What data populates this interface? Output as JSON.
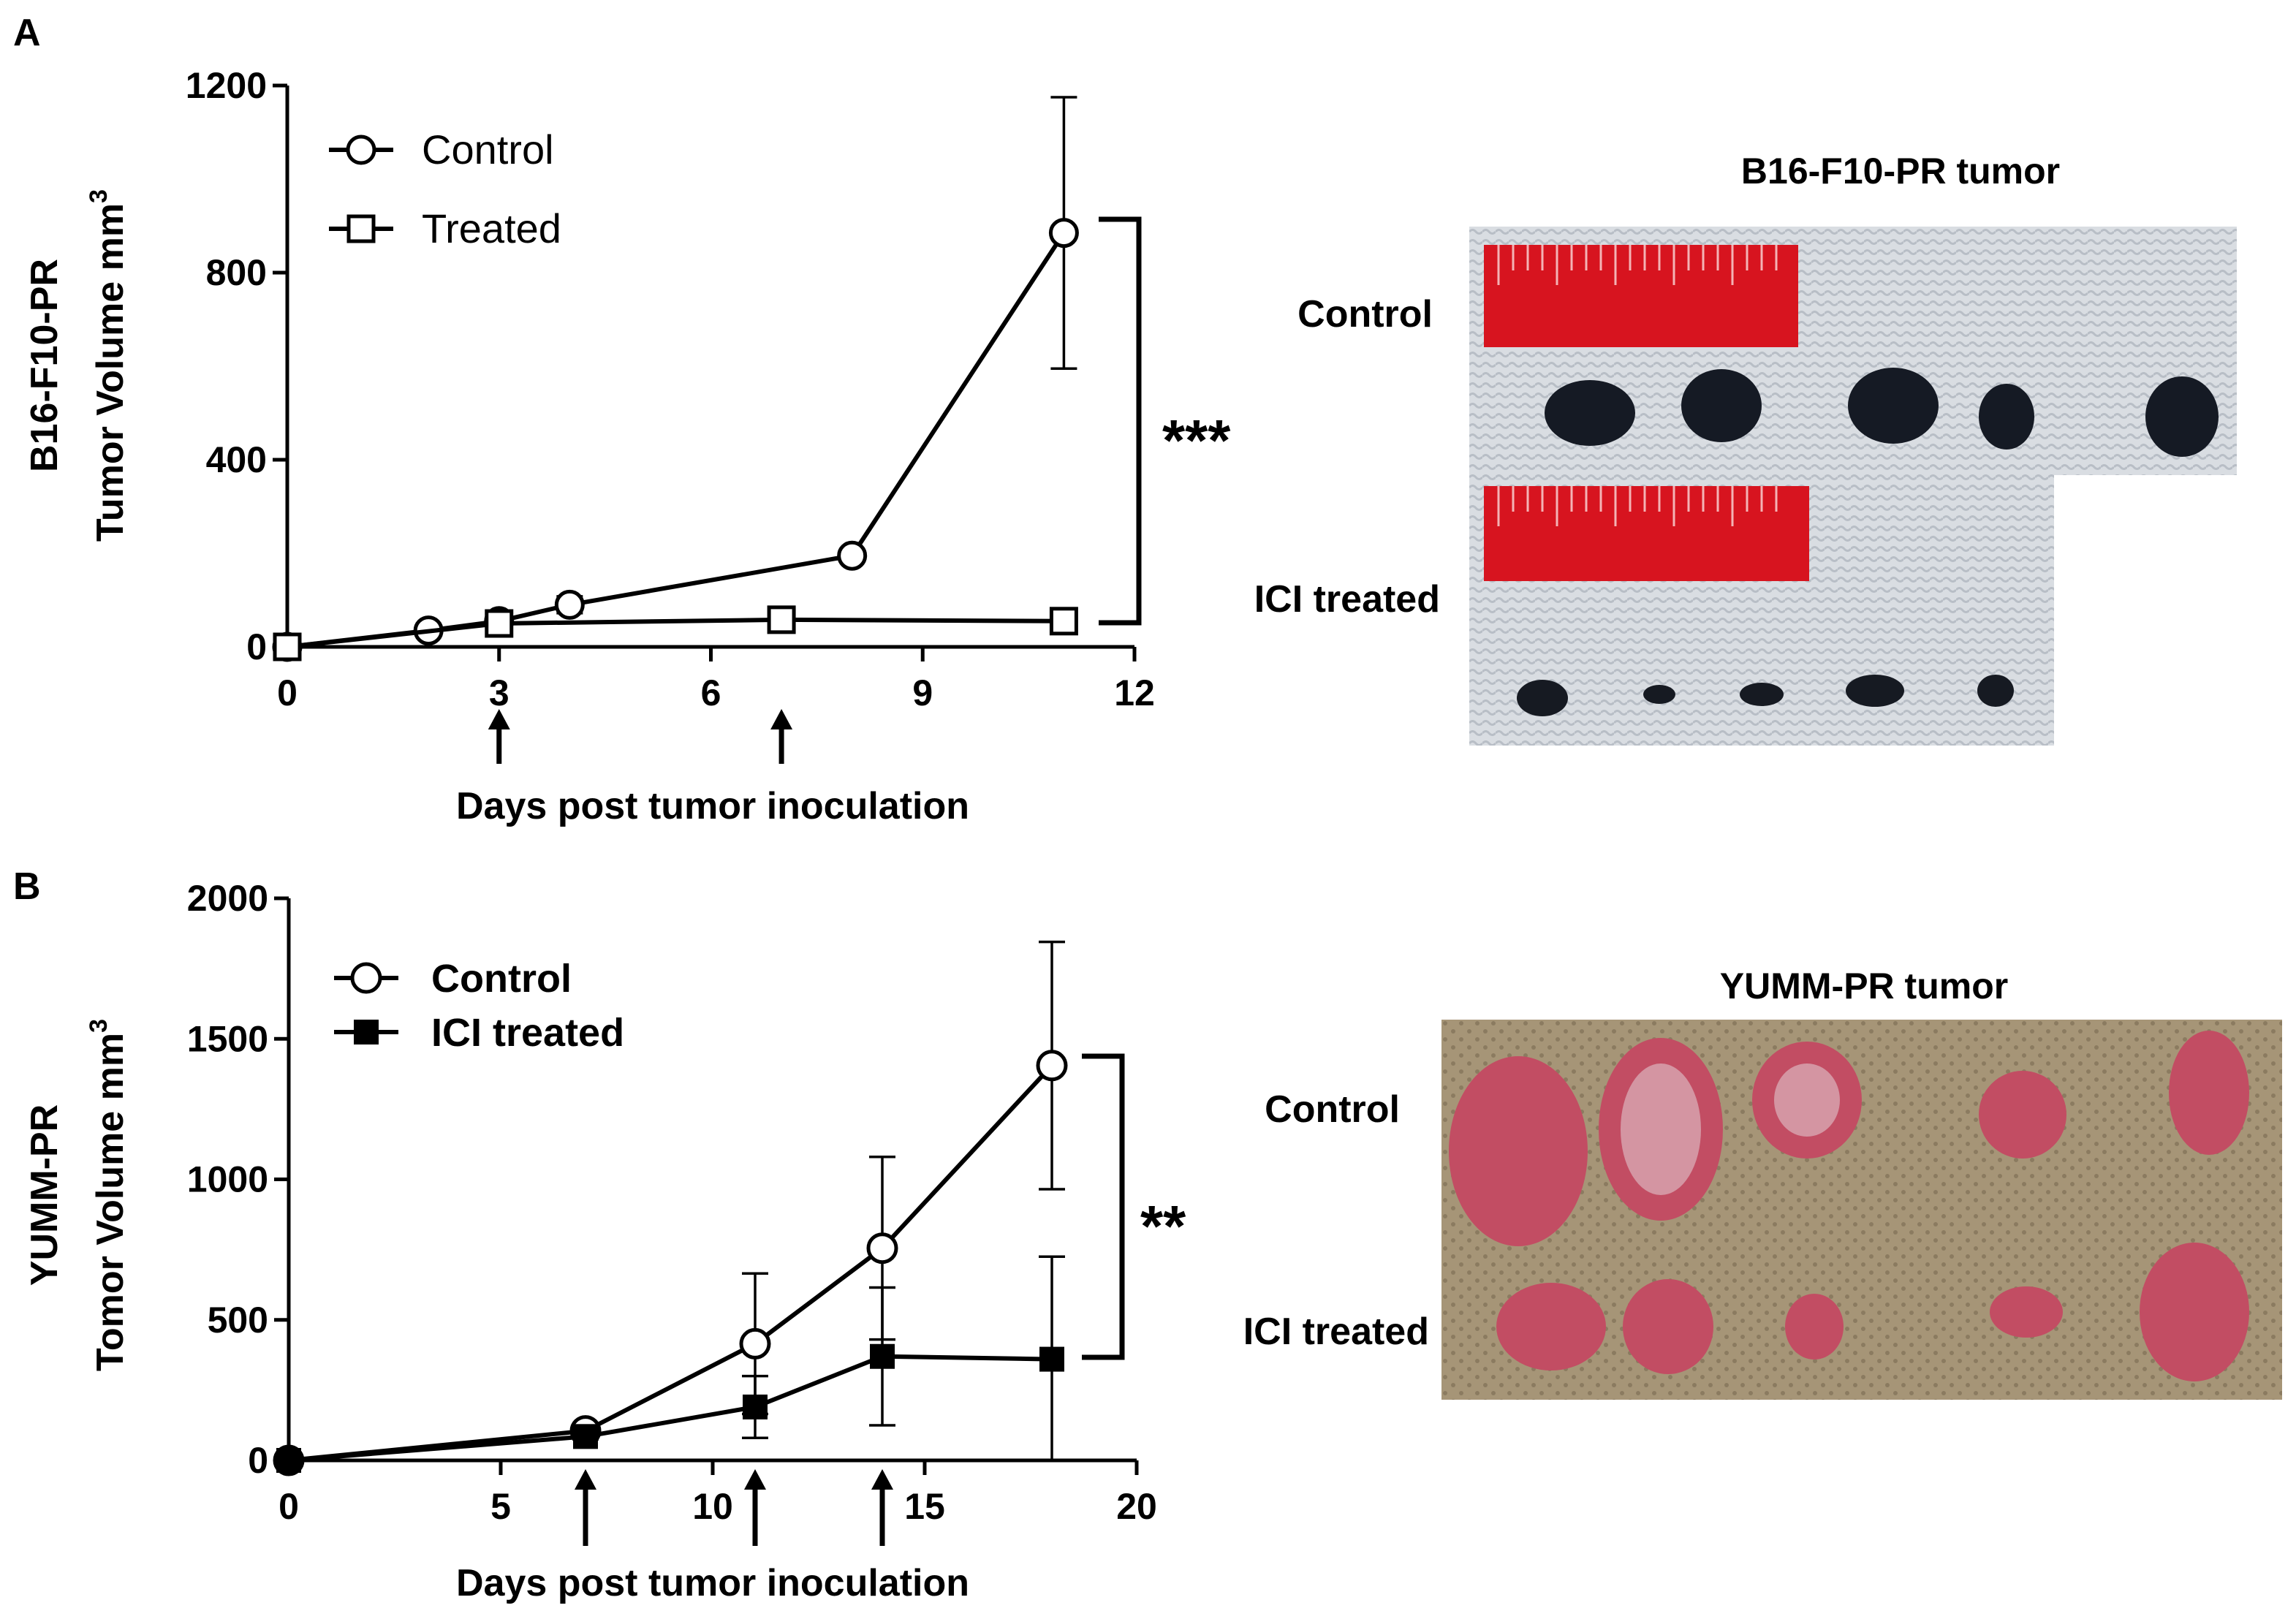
{
  "panels": [
    {
      "letter": "A",
      "ylabel_line1": "B16-F10-PR",
      "ylabel_line2": "Tumor Volume mm",
      "ylabel_sup": "3",
      "xlabel": "Days post tumor inoculation",
      "significance": "***",
      "photo_title": "B16-F10-PR tumor",
      "photo_labels": [
        "Control",
        "ICI treated"
      ],
      "dosing_days": [
        3,
        7
      ]
    },
    {
      "letter": "B",
      "ylabel_line1": "YUMM-PR",
      "ylabel_line2": "Tomor Volume mm",
      "ylabel_sup": "3",
      "xlabel": "Days post tumor inoculation",
      "significance": "**",
      "photo_title": "YUMM-PR tumor",
      "photo_labels": [
        "Control",
        "ICI treated"
      ],
      "dosing_days": [
        7,
        11,
        14
      ]
    }
  ],
  "chart_data": [
    {
      "type": "line",
      "xlim": [
        0,
        12
      ],
      "ylim": [
        0,
        1200
      ],
      "xticks": [
        0,
        3,
        6,
        9,
        12
      ],
      "yticks": [
        0,
        400,
        800,
        1200
      ],
      "legend_position": "top-left",
      "series": [
        {
          "name": "Control",
          "marker": "open-circle",
          "x": [
            0,
            2,
            3,
            4,
            8,
            11
          ],
          "y": [
            0,
            35,
            55,
            90,
            195,
            885
          ],
          "err": [
            0,
            5,
            8,
            18,
            12,
            290
          ]
        },
        {
          "name": "Treated",
          "marker": "open-square",
          "x": [
            0,
            3,
            7,
            11
          ],
          "y": [
            0,
            50,
            58,
            55
          ],
          "err": [
            0,
            5,
            6,
            5
          ]
        }
      ]
    },
    {
      "type": "line",
      "xlim": [
        0,
        20
      ],
      "ylim": [
        0,
        2000
      ],
      "xticks": [
        0,
        5,
        10,
        15,
        20
      ],
      "yticks": [
        0,
        500,
        1000,
        1500,
        2000
      ],
      "legend_position": "top-left",
      "series": [
        {
          "name": "Control",
          "marker": "open-circle",
          "x": [
            0,
            7,
            11,
            14,
            18
          ],
          "y": [
            0,
            105,
            415,
            755,
            1405
          ],
          "err": [
            0,
            20,
            250,
            325,
            440
          ]
        },
        {
          "name": "ICI treated",
          "marker": "filled-square",
          "x": [
            0,
            7,
            11,
            14,
            18
          ],
          "y": [
            0,
            85,
            190,
            370,
            360
          ],
          "err": [
            0,
            10,
            110,
            245,
            365
          ]
        }
      ]
    }
  ]
}
